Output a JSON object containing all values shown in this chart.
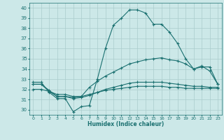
{
  "title": "",
  "xlabel": "Humidex (Indice chaleur)",
  "bg_color": "#cce8e8",
  "grid_color": "#aacccc",
  "line_color": "#1a7070",
  "spine_color": "#1a7070",
  "xlim": [
    -0.5,
    23.5
  ],
  "ylim": [
    29.5,
    40.5
  ],
  "yticks": [
    30,
    31,
    32,
    33,
    34,
    35,
    36,
    37,
    38,
    39,
    40
  ],
  "xticks": [
    0,
    1,
    2,
    3,
    4,
    5,
    6,
    7,
    8,
    9,
    10,
    11,
    12,
    13,
    14,
    15,
    16,
    17,
    18,
    19,
    20,
    21,
    22,
    23
  ],
  "series": [
    {
      "x": [
        0,
        1,
        2,
        3,
        4,
        5,
        6,
        7,
        8,
        9,
        10,
        11,
        12,
        13,
        14,
        15,
        16,
        17,
        18,
        19,
        20,
        21,
        22,
        23
      ],
      "y": [
        32.7,
        32.7,
        31.7,
        31.1,
        31.1,
        29.8,
        30.3,
        30.4,
        33.0,
        36.0,
        38.3,
        39.0,
        39.8,
        39.8,
        39.5,
        38.4,
        38.4,
        37.6,
        36.5,
        35.0,
        34.0,
        34.3,
        33.8,
        32.5
      ]
    },
    {
      "x": [
        0,
        1,
        2,
        3,
        4,
        5,
        6,
        7,
        8,
        9,
        10,
        11,
        12,
        13,
        14,
        15,
        16,
        17,
        18,
        19,
        20,
        21,
        22,
        23
      ],
      "y": [
        32.5,
        32.5,
        31.9,
        31.3,
        31.3,
        31.2,
        31.3,
        32.2,
        32.8,
        33.3,
        33.7,
        34.1,
        34.5,
        34.7,
        34.9,
        35.0,
        35.1,
        34.9,
        34.8,
        34.5,
        34.0,
        34.2,
        34.2,
        32.5
      ]
    },
    {
      "x": [
        0,
        1,
        2,
        3,
        4,
        5,
        6,
        7,
        8,
        9,
        10,
        11,
        12,
        13,
        14,
        15,
        16,
        17,
        18,
        19,
        20,
        21,
        22,
        23
      ],
      "y": [
        32.0,
        32.0,
        31.8,
        31.5,
        31.5,
        31.3,
        31.3,
        31.5,
        31.7,
        31.9,
        32.0,
        32.1,
        32.2,
        32.3,
        32.3,
        32.3,
        32.3,
        32.2,
        32.2,
        32.1,
        32.1,
        32.1,
        32.1,
        32.1
      ]
    },
    {
      "x": [
        0,
        1,
        2,
        3,
        4,
        5,
        6,
        7,
        8,
        9,
        10,
        11,
        12,
        13,
        14,
        15,
        16,
        17,
        18,
        19,
        20,
        21,
        22,
        23
      ],
      "y": [
        32.5,
        32.5,
        31.8,
        31.3,
        31.3,
        31.1,
        31.2,
        31.4,
        31.7,
        32.0,
        32.2,
        32.4,
        32.6,
        32.7,
        32.7,
        32.7,
        32.7,
        32.6,
        32.5,
        32.4,
        32.3,
        32.3,
        32.2,
        32.2
      ]
    }
  ]
}
